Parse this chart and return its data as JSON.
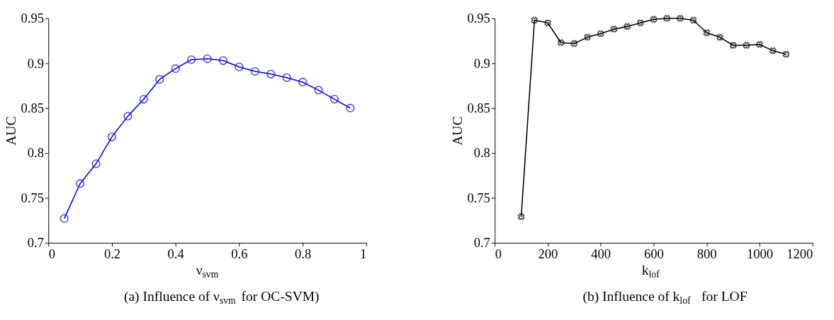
{
  "chart_data": [
    {
      "type": "line",
      "title": "(a) Influence of ν$_{svm}$ for OC-SVM)",
      "xlabel": "ν$_{svm}$",
      "ylabel": "AUC",
      "marker": "circle",
      "line_style": "solid",
      "grid": false,
      "xlim": [
        0,
        1
      ],
      "xticks": [
        0,
        0.2,
        0.4,
        0.6,
        0.8,
        1
      ],
      "ylim": [
        0.7,
        0.95
      ],
      "yticks": [
        0.7,
        0.75,
        0.8,
        0.85,
        0.9,
        0.95
      ],
      "x": [
        0.05,
        0.1,
        0.15,
        0.2,
        0.25,
        0.3,
        0.35,
        0.4,
        0.45,
        0.5,
        0.55,
        0.6,
        0.65,
        0.7,
        0.75,
        0.8,
        0.85,
        0.9,
        0.95
      ],
      "series": [
        {
          "color": "#0000ff",
          "values": [
            0.727,
            0.766,
            0.788,
            0.818,
            0.841,
            0.86,
            0.882,
            0.894,
            0.904,
            0.905,
            0.903,
            0.896,
            0.891,
            0.888,
            0.884,
            0.879,
            0.87,
            0.86,
            0.85
          ]
        }
      ]
    },
    {
      "type": "line",
      "title": "(b) Influence of k$_{lof}$ for LOF",
      "xlabel": "k$_{lof}$",
      "ylabel": "AUC",
      "marker": "cross",
      "line_style": "solid",
      "grid": false,
      "xlim": [
        0,
        1200
      ],
      "xticks": [
        0,
        200,
        400,
        600,
        800,
        1000,
        1200
      ],
      "ylim": [
        0.7,
        0.95
      ],
      "yticks": [
        0.7,
        0.75,
        0.8,
        0.85,
        0.9,
        0.95
      ],
      "x": [
        100,
        150,
        200,
        250,
        300,
        350,
        400,
        450,
        500,
        550,
        600,
        650,
        700,
        750,
        800,
        850,
        900,
        950,
        1000,
        1050,
        1100
      ],
      "series": [
        {
          "color": "#000000",
          "values": [
            0.729,
            0.948,
            0.945,
            0.923,
            0.922,
            0.929,
            0.933,
            0.938,
            0.941,
            0.945,
            0.949,
            0.95,
            0.95,
            0.948,
            0.934,
            0.929,
            0.92,
            0.92,
            0.921,
            0.914,
            0.91
          ]
        }
      ]
    }
  ]
}
